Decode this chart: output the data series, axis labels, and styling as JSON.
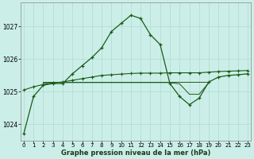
{
  "xlabel": "Graphe pression niveau de la mer (hPa)",
  "bg_color": "#cceee8",
  "grid_color": "#aaddcc",
  "line_color": "#1a5c1a",
  "ylim": [
    1023.5,
    1027.75
  ],
  "xlim": [
    -0.3,
    23.3
  ],
  "yticks": [
    1024,
    1025,
    1026,
    1027
  ],
  "xticks": [
    0,
    1,
    2,
    3,
    4,
    5,
    6,
    7,
    8,
    9,
    10,
    11,
    12,
    13,
    14,
    15,
    16,
    17,
    18,
    19,
    20,
    21,
    22,
    23
  ],
  "s1": [
    1023.7,
    1024.85,
    1025.2,
    1025.25,
    1025.25,
    1025.55,
    1025.8,
    1026.05,
    1026.35,
    1026.85,
    1027.1,
    1027.35,
    1027.25,
    1026.75,
    1026.45,
    1025.25,
    1024.85,
    1024.6,
    1024.8,
    1025.3,
    1025.45,
    1025.5,
    1025.52,
    1025.55
  ],
  "s2": [
    1025.05,
    1025.15,
    1025.22,
    1025.27,
    1025.3,
    1025.35,
    1025.4,
    1025.45,
    1025.5,
    1025.52,
    1025.54,
    1025.56,
    1025.57,
    1025.57,
    1025.57,
    1025.58,
    1025.58,
    1025.58,
    1025.58,
    1025.6,
    1025.62,
    1025.63,
    1025.64,
    1025.65
  ],
  "s3_x": [
    2,
    3,
    4,
    5,
    6,
    7,
    8,
    9,
    10,
    11,
    12,
    13,
    14,
    15,
    16,
    17,
    18,
    19
  ],
  "s3_y": [
    1025.27,
    1025.28,
    1025.28,
    1025.28,
    1025.28,
    1025.28,
    1025.28,
    1025.28,
    1025.28,
    1025.28,
    1025.28,
    1025.28,
    1025.28,
    1025.28,
    1025.24,
    1024.92,
    1024.92,
    1025.28
  ],
  "s4_x": [
    2,
    3,
    4,
    5,
    6,
    7,
    8,
    9,
    10,
    11,
    12,
    13,
    14,
    15,
    16,
    17,
    18,
    19
  ],
  "s4_y": [
    1025.3,
    1025.3,
    1025.3,
    1025.3,
    1025.3,
    1025.3,
    1025.3,
    1025.3,
    1025.3,
    1025.3,
    1025.3,
    1025.3,
    1025.3,
    1025.3,
    1025.3,
    1025.3,
    1025.3,
    1025.3
  ]
}
